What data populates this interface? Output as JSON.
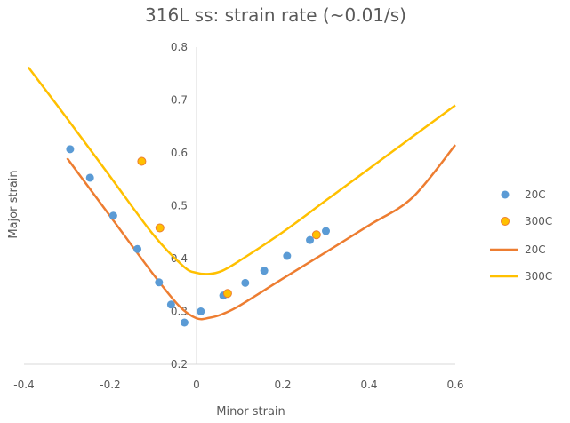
{
  "chart_data": {
    "type": "scatter",
    "title": "316L ss: strain rate (~0.01/s)",
    "xlabel": "Minor strain",
    "ylabel": "Major strain",
    "xlim": [
      -0.4,
      0.6
    ],
    "ylim": [
      0.2,
      0.8
    ],
    "xticks": [
      -0.4,
      -0.2,
      0,
      0.2,
      0.4,
      0.6
    ],
    "yticks": [
      0.2,
      0.3,
      0.4,
      0.5,
      0.6,
      0.7,
      0.8
    ],
    "xtick_labels": [
      "-0.4",
      "-0.2",
      "0",
      "0.2",
      "0.4",
      "0.6"
    ],
    "ytick_labels": [
      "0.2",
      "0.3",
      "0.4",
      "0.5",
      "0.6",
      "0.7",
      "0.8"
    ],
    "grid": false,
    "legend_position": "right",
    "series": [
      {
        "name": "20C",
        "kind": "scatter",
        "color": "#5b9bd5",
        "points": [
          [
            -0.293,
            0.607
          ],
          [
            -0.247,
            0.553
          ],
          [
            -0.193,
            0.481
          ],
          [
            -0.137,
            0.418
          ],
          [
            -0.087,
            0.355
          ],
          [
            -0.059,
            0.313
          ],
          [
            -0.028,
            0.279
          ],
          [
            0.01,
            0.3
          ],
          [
            0.062,
            0.33
          ],
          [
            0.113,
            0.354
          ],
          [
            0.157,
            0.377
          ],
          [
            0.21,
            0.405
          ],
          [
            0.263,
            0.435
          ],
          [
            0.3,
            0.452
          ]
        ]
      },
      {
        "name": "300C",
        "kind": "scatter",
        "color": "#ffc000",
        "edge_color": "#ed7d31",
        "points": [
          [
            -0.127,
            0.584
          ],
          [
            -0.085,
            0.458
          ],
          [
            0.072,
            0.334
          ],
          [
            0.278,
            0.445
          ]
        ]
      },
      {
        "name": "20C",
        "kind": "line",
        "color": "#ed7d31",
        "points": [
          [
            -0.3,
            0.59
          ],
          [
            -0.2,
            0.48
          ],
          [
            -0.1,
            0.37
          ],
          [
            -0.04,
            0.31
          ],
          [
            0,
            0.287
          ],
          [
            0.03,
            0.288
          ],
          [
            0.06,
            0.295
          ],
          [
            0.1,
            0.311
          ],
          [
            0.2,
            0.362
          ],
          [
            0.3,
            0.412
          ],
          [
            0.4,
            0.463
          ],
          [
            0.5,
            0.515
          ],
          [
            0.6,
            0.615
          ]
        ]
      },
      {
        "name": "300C",
        "kind": "line",
        "color": "#ffc000",
        "points": [
          [
            -0.39,
            0.762
          ],
          [
            -0.3,
            0.665
          ],
          [
            -0.2,
            0.555
          ],
          [
            -0.1,
            0.445
          ],
          [
            -0.03,
            0.385
          ],
          [
            0,
            0.373
          ],
          [
            0.03,
            0.371
          ],
          [
            0.06,
            0.377
          ],
          [
            0.1,
            0.396
          ],
          [
            0.2,
            0.45
          ],
          [
            0.3,
            0.51
          ],
          [
            0.4,
            0.57
          ],
          [
            0.5,
            0.63
          ],
          [
            0.6,
            0.69
          ]
        ]
      }
    ]
  }
}
